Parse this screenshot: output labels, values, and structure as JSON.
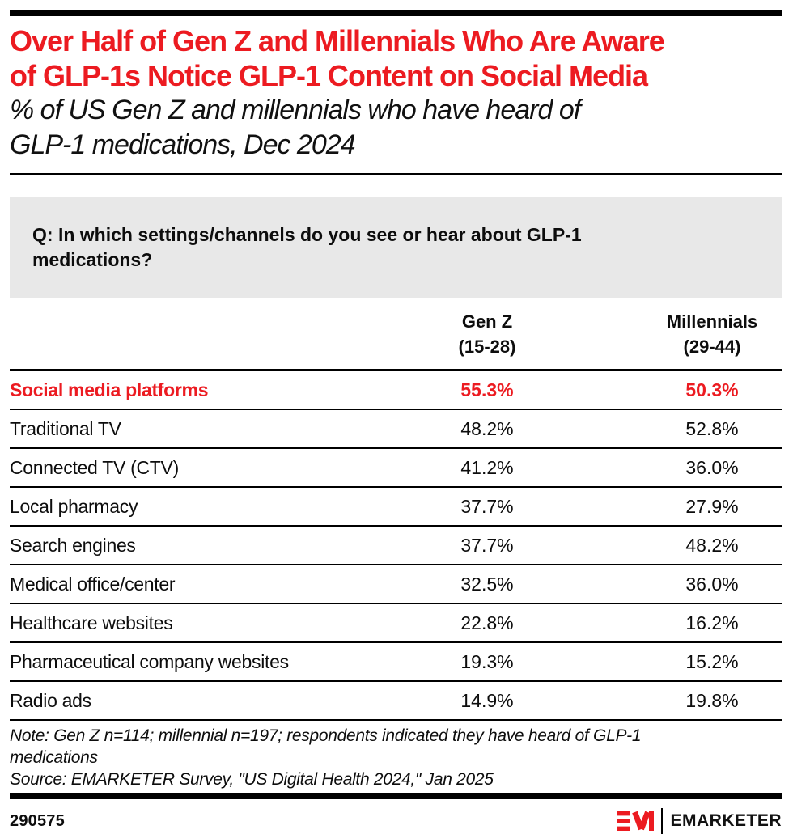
{
  "colors": {
    "accent_red": "#EC1B21",
    "question_bg": "#E8E8E8",
    "bar_black": "#000000"
  },
  "header": {
    "title_line1": "Over Half of Gen Z and Millennials Who Are Aware",
    "title_line2": "of GLP-1s Notice GLP-1 Content on Social Media",
    "subtitle_line1": "% of US Gen Z and millennials who have heard of",
    "subtitle_line2": "GLP-1 medications, Dec 2024"
  },
  "question": {
    "line1": "Q: In which settings/channels do you see or hear about GLP-1",
    "line2": "medications?"
  },
  "table": {
    "columns": [
      {
        "label": "Gen Z",
        "sublabel": "(15-28)"
      },
      {
        "label": "Millennials",
        "sublabel": "(29-44)"
      }
    ],
    "rows": [
      {
        "label": "Social media platforms",
        "genz": "55.3%",
        "millennials": "50.3%",
        "highlight": true
      },
      {
        "label": "Traditional TV",
        "genz": "48.2%",
        "millennials": "52.8%",
        "highlight": false
      },
      {
        "label": "Connected TV (CTV)",
        "genz": "41.2%",
        "millennials": "36.0%",
        "highlight": false
      },
      {
        "label": "Local pharmacy",
        "genz": "37.7%",
        "millennials": "27.9%",
        "highlight": false
      },
      {
        "label": "Search engines",
        "genz": "37.7%",
        "millennials": "48.2%",
        "highlight": false
      },
      {
        "label": "Medical office/center",
        "genz": "32.5%",
        "millennials": "36.0%",
        "highlight": false
      },
      {
        "label": "Healthcare websites",
        "genz": "22.8%",
        "millennials": "16.2%",
        "highlight": false
      },
      {
        "label": "Pharmaceutical company websites",
        "genz": "19.3%",
        "millennials": "15.2%",
        "highlight": false
      },
      {
        "label": "Radio ads",
        "genz": "14.9%",
        "millennials": "19.8%",
        "highlight": false
      }
    ]
  },
  "footnote": {
    "note_line1": "Note: Gen Z n=114; millennial n=197; respondents indicated they have heard of GLP-1",
    "note_line2": "medications",
    "source": "Source: EMARKETER Survey, \"US Digital Health 2024,\" Jan 2025"
  },
  "footer": {
    "chart_id": "290575",
    "brand": "EMARKETER"
  },
  "chart_data": {
    "type": "table",
    "title": "Over Half of Gen Z and Millennials Who Are Aware of GLP-1s Notice GLP-1 Content on Social Media",
    "subtitle": "% of US Gen Z and millennials who have heard of GLP-1 medications, Dec 2024",
    "question": "Q: In which settings/channels do you see or hear about GLP-1 medications?",
    "categories": [
      "Social media platforms",
      "Traditional TV",
      "Connected TV (CTV)",
      "Local pharmacy",
      "Search engines",
      "Medical office/center",
      "Healthcare websites",
      "Pharmaceutical company websites",
      "Radio ads"
    ],
    "series": [
      {
        "name": "Gen Z (15-28)",
        "values": [
          55.3,
          48.2,
          41.2,
          37.7,
          37.7,
          32.5,
          22.8,
          19.3,
          14.9
        ]
      },
      {
        "name": "Millennials (29-44)",
        "values": [
          50.3,
          52.8,
          36.0,
          27.9,
          48.2,
          36.0,
          16.2,
          15.2,
          19.8
        ]
      }
    ],
    "unit": "%",
    "highlighted_row": "Social media platforms",
    "note": "Note: Gen Z n=114; millennial n=197; respondents indicated they have heard of GLP-1 medications",
    "source": "Source: EMARKETER Survey, \"US Digital Health 2024,\" Jan 2025",
    "chart_id": "290575"
  }
}
